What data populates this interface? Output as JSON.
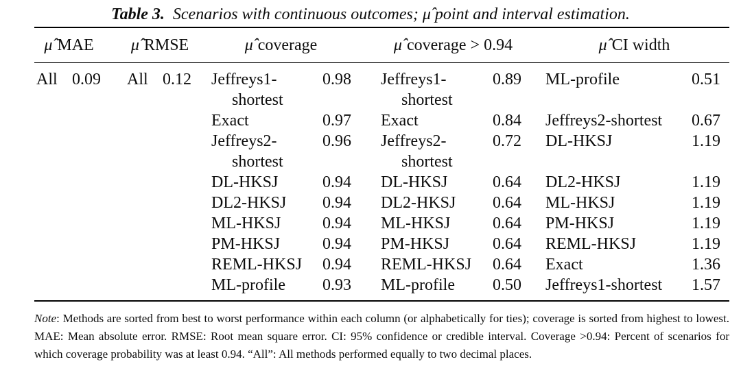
{
  "title": {
    "label": "Table 3.",
    "text": "Scenarios with continuous outcomes; μ̂ point and interval estimation."
  },
  "table": {
    "column_groups": [
      {
        "symbol": "μ̂",
        "label": "MAE"
      },
      {
        "symbol": "μ̂",
        "label": "RMSE"
      },
      {
        "symbol": "μ̂",
        "label": "coverage"
      },
      {
        "symbol": "μ̂",
        "label": "coverage > 0.94"
      },
      {
        "symbol": "μ̂",
        "label": "CI width"
      }
    ],
    "rows": [
      [
        "All",
        "0.09",
        "All",
        "0.12",
        "Jeffreys1-shortest",
        "0.98",
        "Jeffreys1-shortest",
        "0.89",
        "ML-profile",
        "0.51"
      ],
      [
        "",
        "",
        "",
        "",
        "Exact",
        "0.97",
        "Exact",
        "0.84",
        "Jeffreys2-shortest",
        "0.67"
      ],
      [
        "",
        "",
        "",
        "",
        "Jeffreys2-shortest",
        "0.96",
        "Jeffreys2-shortest",
        "0.72",
        "DL-HKSJ",
        "1.19"
      ],
      [
        "",
        "",
        "",
        "",
        "DL-HKSJ",
        "0.94",
        "DL-HKSJ",
        "0.64",
        "DL2-HKSJ",
        "1.19"
      ],
      [
        "",
        "",
        "",
        "",
        "DL2-HKSJ",
        "0.94",
        "DL2-HKSJ",
        "0.64",
        "ML-HKSJ",
        "1.19"
      ],
      [
        "",
        "",
        "",
        "",
        "ML-HKSJ",
        "0.94",
        "ML-HKSJ",
        "0.64",
        "PM-HKSJ",
        "1.19"
      ],
      [
        "",
        "",
        "",
        "",
        "PM-HKSJ",
        "0.94",
        "PM-HKSJ",
        "0.64",
        "REML-HKSJ",
        "1.19"
      ],
      [
        "",
        "",
        "",
        "",
        "REML-HKSJ",
        "0.94",
        "REML-HKSJ",
        "0.64",
        "Exact",
        "1.36"
      ],
      [
        "",
        "",
        "",
        "",
        "ML-profile",
        "0.93",
        "ML-profile",
        "0.50",
        "Jeffreys1-shortest",
        "1.57"
      ]
    ]
  },
  "note": {
    "label": "Note",
    "line1_rest": ": Methods are sorted from best to worst performance within each column (or alphabetically for ties); coverage is sorted from highest to lowest.",
    "line2": "MAE: Mean absolute error. RMSE: Root mean square error. CI: 95% confidence or credible interval. Coverage >0.94: Percent of scenarios for",
    "line3": "which coverage probability was at least 0.94. “All”: All methods performed equally to two decimal places."
  }
}
